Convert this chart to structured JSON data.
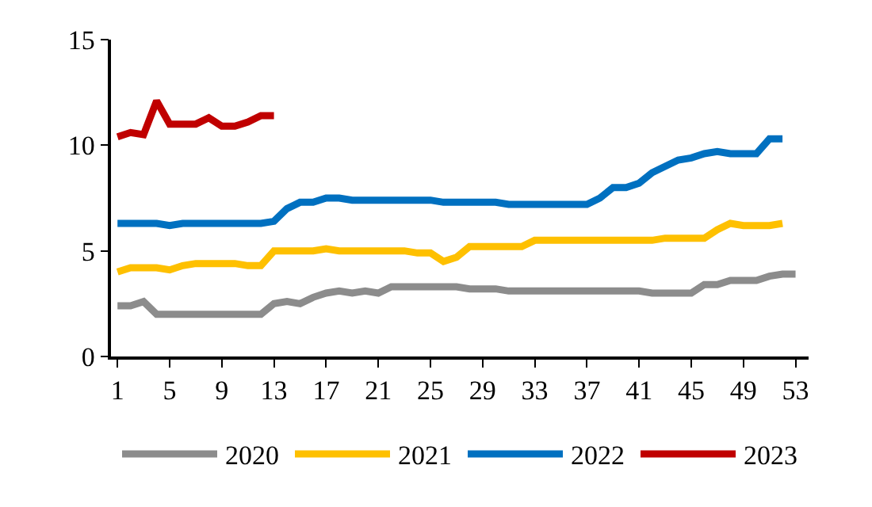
{
  "chart_data": {
    "type": "line",
    "legend": "bottom",
    "grid": false,
    "marker": "none",
    "line_style": "solid",
    "xlim": [
      0.5,
      54
    ],
    "xticks": [
      1,
      5,
      9,
      13,
      17,
      21,
      25,
      29,
      33,
      37,
      41,
      45,
      49,
      53
    ],
    "ylim": [
      0,
      15
    ],
    "yticks": [
      0,
      5,
      10,
      15
    ],
    "series": [
      {
        "name": "2020",
        "color": "#8c8c8c",
        "x": [
          1,
          2,
          3,
          4,
          5,
          6,
          7,
          8,
          9,
          10,
          11,
          12,
          13,
          14,
          15,
          16,
          17,
          18,
          19,
          20,
          21,
          22,
          23,
          24,
          25,
          26,
          27,
          28,
          29,
          30,
          31,
          32,
          33,
          34,
          35,
          36,
          37,
          38,
          39,
          40,
          41,
          42,
          43,
          44,
          45,
          46,
          47,
          48,
          49,
          50,
          51,
          52,
          53
        ],
        "values": [
          2.4,
          2.4,
          2.6,
          2.0,
          2.0,
          2.0,
          2.0,
          2.0,
          2.0,
          2.0,
          2.0,
          2.0,
          2.5,
          2.6,
          2.5,
          2.8,
          3.0,
          3.1,
          3.0,
          3.1,
          3.0,
          3.3,
          3.3,
          3.3,
          3.3,
          3.3,
          3.3,
          3.2,
          3.2,
          3.2,
          3.1,
          3.1,
          3.1,
          3.1,
          3.1,
          3.1,
          3.1,
          3.1,
          3.1,
          3.1,
          3.1,
          3.0,
          3.0,
          3.0,
          3.0,
          3.4,
          3.4,
          3.6,
          3.6,
          3.6,
          3.8,
          3.9,
          3.9
        ]
      },
      {
        "name": "2021",
        "color": "#fec000",
        "x": [
          1,
          2,
          3,
          4,
          5,
          6,
          7,
          8,
          9,
          10,
          11,
          12,
          13,
          14,
          15,
          16,
          17,
          18,
          19,
          20,
          21,
          22,
          23,
          24,
          25,
          26,
          27,
          28,
          29,
          30,
          31,
          32,
          33,
          34,
          35,
          36,
          37,
          38,
          39,
          40,
          41,
          42,
          43,
          44,
          45,
          46,
          47,
          48,
          49,
          50,
          51,
          52
        ],
        "values": [
          4.0,
          4.2,
          4.2,
          4.2,
          4.1,
          4.3,
          4.4,
          4.4,
          4.4,
          4.4,
          4.3,
          4.3,
          5.0,
          5.0,
          5.0,
          5.0,
          5.1,
          5.0,
          5.0,
          5.0,
          5.0,
          5.0,
          5.0,
          4.9,
          4.9,
          4.5,
          4.7,
          5.2,
          5.2,
          5.2,
          5.2,
          5.2,
          5.5,
          5.5,
          5.5,
          5.5,
          5.5,
          5.5,
          5.5,
          5.5,
          5.5,
          5.5,
          5.6,
          5.6,
          5.6,
          5.6,
          6.0,
          6.3,
          6.2,
          6.2,
          6.2,
          6.3
        ]
      },
      {
        "name": "2022",
        "color": "#0070c0",
        "x": [
          1,
          2,
          3,
          4,
          5,
          6,
          7,
          8,
          9,
          10,
          11,
          12,
          13,
          14,
          15,
          16,
          17,
          18,
          19,
          20,
          21,
          22,
          23,
          24,
          25,
          26,
          27,
          28,
          29,
          30,
          31,
          32,
          33,
          34,
          35,
          36,
          37,
          38,
          39,
          40,
          41,
          42,
          43,
          44,
          45,
          46,
          47,
          48,
          49,
          50,
          51,
          52
        ],
        "values": [
          6.3,
          6.3,
          6.3,
          6.3,
          6.2,
          6.3,
          6.3,
          6.3,
          6.3,
          6.3,
          6.3,
          6.3,
          6.4,
          7.0,
          7.3,
          7.3,
          7.5,
          7.5,
          7.4,
          7.4,
          7.4,
          7.4,
          7.4,
          7.4,
          7.4,
          7.3,
          7.3,
          7.3,
          7.3,
          7.3,
          7.2,
          7.2,
          7.2,
          7.2,
          7.2,
          7.2,
          7.2,
          7.5,
          8.0,
          8.0,
          8.2,
          8.7,
          9.0,
          9.3,
          9.4,
          9.6,
          9.7,
          9.6,
          9.6,
          9.6,
          10.3,
          10.3
        ]
      },
      {
        "name": "2023",
        "color": "#c00000",
        "x": [
          1,
          2,
          3,
          4,
          5,
          6,
          7,
          8,
          9,
          10,
          11,
          12,
          13
        ],
        "values": [
          10.4,
          10.6,
          10.5,
          12.1,
          11.0,
          11.0,
          11.0,
          11.3,
          10.9,
          10.9,
          11.1,
          11.4,
          11.4
        ]
      }
    ]
  }
}
